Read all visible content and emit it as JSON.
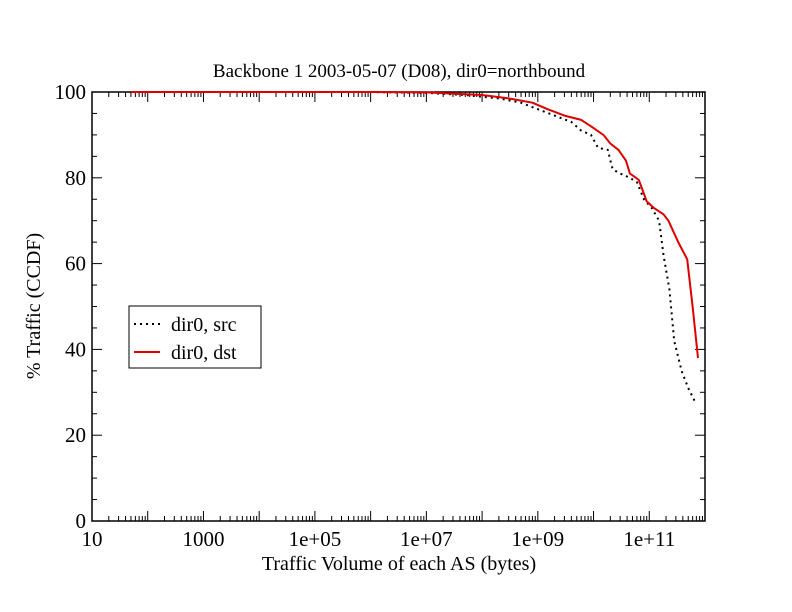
{
  "chart_data": {
    "type": "line",
    "title": "Backbone 1 2003-05-07 (D08), dir0=northbound",
    "xlabel": "Traffic Volume of each AS (bytes)",
    "ylabel": "% Traffic (CCDF)",
    "x_scale": "log",
    "xlim": [
      10,
      1000000000000
    ],
    "ylim": [
      0,
      100
    ],
    "x_ticks": [
      {
        "value": 10,
        "label": "10"
      },
      {
        "value": 1000,
        "label": "1000"
      },
      {
        "value": 100000,
        "label": "1e+05"
      },
      {
        "value": 10000000,
        "label": "1e+07"
      },
      {
        "value": 1000000000,
        "label": "1e+09"
      },
      {
        "value": 100000000000,
        "label": "1e+11"
      }
    ],
    "y_ticks": [
      {
        "value": 0,
        "label": "0"
      },
      {
        "value": 20,
        "label": "20"
      },
      {
        "value": 40,
        "label": "40"
      },
      {
        "value": 60,
        "label": "60"
      },
      {
        "value": 80,
        "label": "80"
      },
      {
        "value": 100,
        "label": "100"
      }
    ],
    "grid": false,
    "legend_position": "left-middle",
    "series": [
      {
        "name": "dir0, src",
        "style": "dotted",
        "color": "#000000",
        "points": [
          [
            50,
            100
          ],
          [
            1000000,
            100
          ],
          [
            10000000,
            99.8
          ],
          [
            50000000,
            99.3
          ],
          [
            200000000,
            98.5
          ],
          [
            500000000,
            97.5
          ],
          [
            1000000000,
            96
          ],
          [
            2000000000,
            94.5
          ],
          [
            4000000000,
            93
          ],
          [
            6000000000,
            91
          ],
          [
            9000000000,
            90
          ],
          [
            12000000000,
            87
          ],
          [
            18000000000,
            86.5
          ],
          [
            22000000000,
            82
          ],
          [
            30000000000,
            81
          ],
          [
            45000000000,
            80
          ],
          [
            60000000000,
            79
          ],
          [
            80000000000,
            75
          ],
          [
            110000000000,
            73
          ],
          [
            150000000000,
            70
          ],
          [
            180000000000,
            62
          ],
          [
            230000000000,
            54
          ],
          [
            280000000000,
            42
          ],
          [
            380000000000,
            35
          ],
          [
            500000000000,
            31
          ],
          [
            650000000000,
            28
          ]
        ]
      },
      {
        "name": "dir0, dst",
        "style": "solid",
        "color": "#dd0000",
        "points": [
          [
            50,
            100
          ],
          [
            1000000,
            100
          ],
          [
            10000000,
            99.9
          ],
          [
            100000000,
            99.3
          ],
          [
            300000000,
            98.5
          ],
          [
            800000000,
            97.5
          ],
          [
            1500000000,
            96
          ],
          [
            3000000000,
            94.5
          ],
          [
            6000000000,
            93.5
          ],
          [
            9000000000,
            92
          ],
          [
            15000000000,
            90
          ],
          [
            20000000000,
            88
          ],
          [
            28000000000,
            86.5
          ],
          [
            38000000000,
            84
          ],
          [
            45000000000,
            81
          ],
          [
            65000000000,
            79.5
          ],
          [
            90000000000,
            74.5
          ],
          [
            120000000000,
            73
          ],
          [
            180000000000,
            71.5
          ],
          [
            220000000000,
            70
          ],
          [
            330000000000,
            65
          ],
          [
            480000000000,
            61
          ],
          [
            600000000000,
            50
          ],
          [
            750000000000,
            38
          ]
        ]
      }
    ]
  }
}
